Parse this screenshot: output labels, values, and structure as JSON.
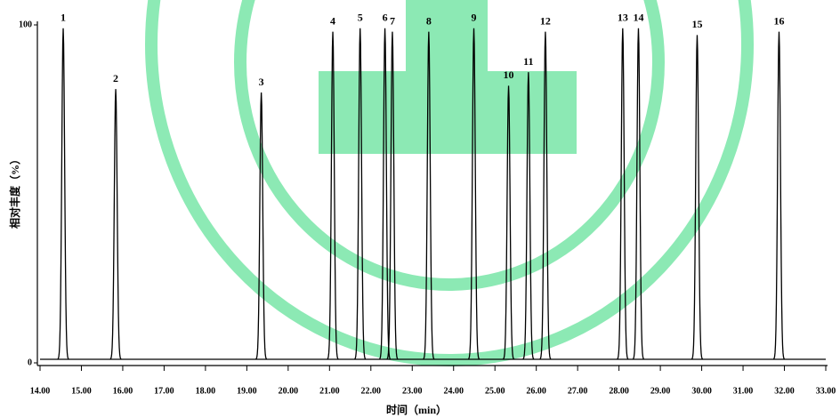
{
  "chart_data": {
    "type": "peaks",
    "xlabel": "时间（min）",
    "ylabel": "相对丰度（%）",
    "xlim": [
      14,
      33
    ],
    "ylim": [
      0,
      100
    ],
    "xticks": [
      {
        "value": 14,
        "label": "14.00"
      },
      {
        "value": 15,
        "label": "15.00"
      },
      {
        "value": 16,
        "label": "16.00"
      },
      {
        "value": 17,
        "label": "17.00"
      },
      {
        "value": 18,
        "label": "18.00"
      },
      {
        "value": 19,
        "label": "19.00"
      },
      {
        "value": 20,
        "label": "20.00"
      },
      {
        "value": 21,
        "label": "21.00"
      },
      {
        "value": 22,
        "label": "22.00"
      },
      {
        "value": 23,
        "label": "23.00"
      },
      {
        "value": 24,
        "label": "24.00"
      },
      {
        "value": 25,
        "label": "25.00"
      },
      {
        "value": 26,
        "label": "26.00"
      },
      {
        "value": 27,
        "label": "27.00"
      },
      {
        "value": 28,
        "label": "28.00"
      },
      {
        "value": 29,
        "label": "29.00"
      },
      {
        "value": 30,
        "label": "30.00"
      },
      {
        "value": 31,
        "label": "31.00"
      },
      {
        "value": 32,
        "label": "32.00"
      },
      {
        "value": 33,
        "label": "33.00"
      }
    ],
    "yticks": [
      0,
      100
    ],
    "color": "#000000",
    "peak_labels": [
      "1",
      "2",
      "3",
      "4",
      "5",
      "6",
      "7",
      "8",
      "9",
      "10",
      "11",
      "12",
      "13",
      "14",
      "15",
      "16"
    ],
    "x": [
      14.56,
      15.83,
      19.35,
      21.08,
      21.74,
      22.34,
      22.52,
      23.4,
      24.49,
      25.33,
      25.81,
      26.22,
      28.09,
      28.47,
      29.89,
      31.87
    ],
    "values": [
      99,
      81,
      80,
      98,
      99,
      99,
      98,
      98,
      99,
      82,
      86,
      98,
      99,
      99,
      97,
      98
    ]
  }
}
